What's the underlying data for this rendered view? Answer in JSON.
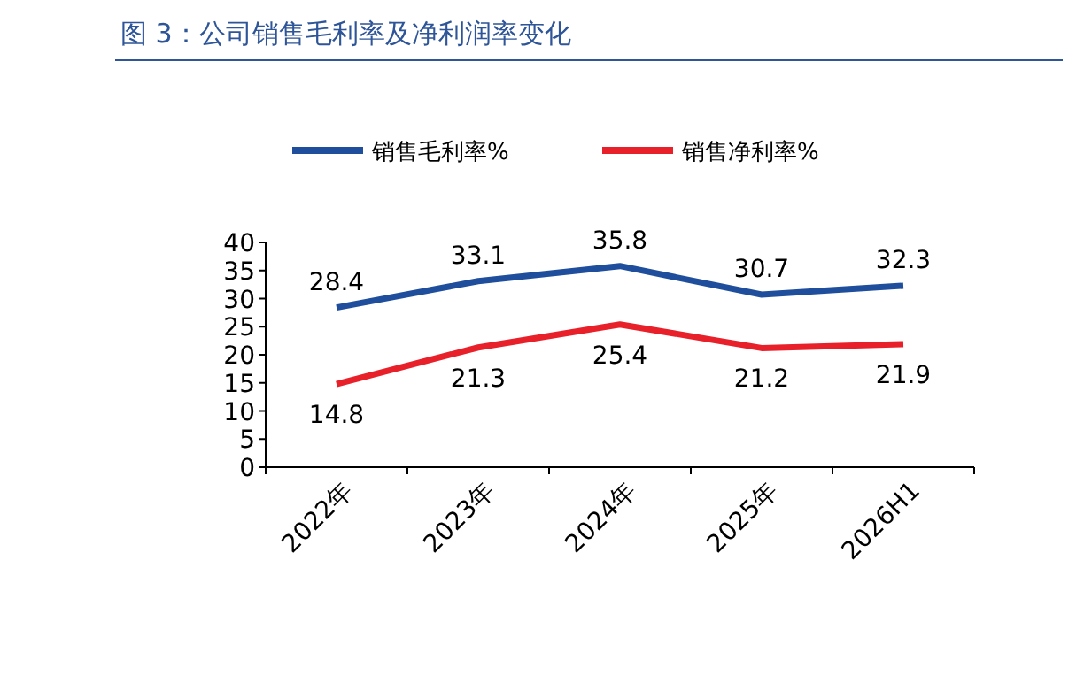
{
  "chart_data": {
    "type": "line",
    "title": "图 3：公司销售毛利率及净利润率变化",
    "categories": [
      "2022年",
      "2023年",
      "2024年",
      "2025年",
      "2026H1"
    ],
    "series": [
      {
        "name": "销售毛利率%",
        "color": "#1f4e9c",
        "values": [
          28.4,
          33.1,
          35.8,
          30.7,
          32.3
        ]
      },
      {
        "name": "销售净利率%",
        "color": "#e8202a",
        "values": [
          14.8,
          21.3,
          25.4,
          21.2,
          21.9
        ]
      }
    ],
    "ylim": [
      0,
      40
    ],
    "yticks": [
      0,
      5,
      10,
      15,
      20,
      25,
      30,
      35,
      40
    ],
    "data_labels": true,
    "legend": "top",
    "grid": false,
    "marker": "none"
  }
}
